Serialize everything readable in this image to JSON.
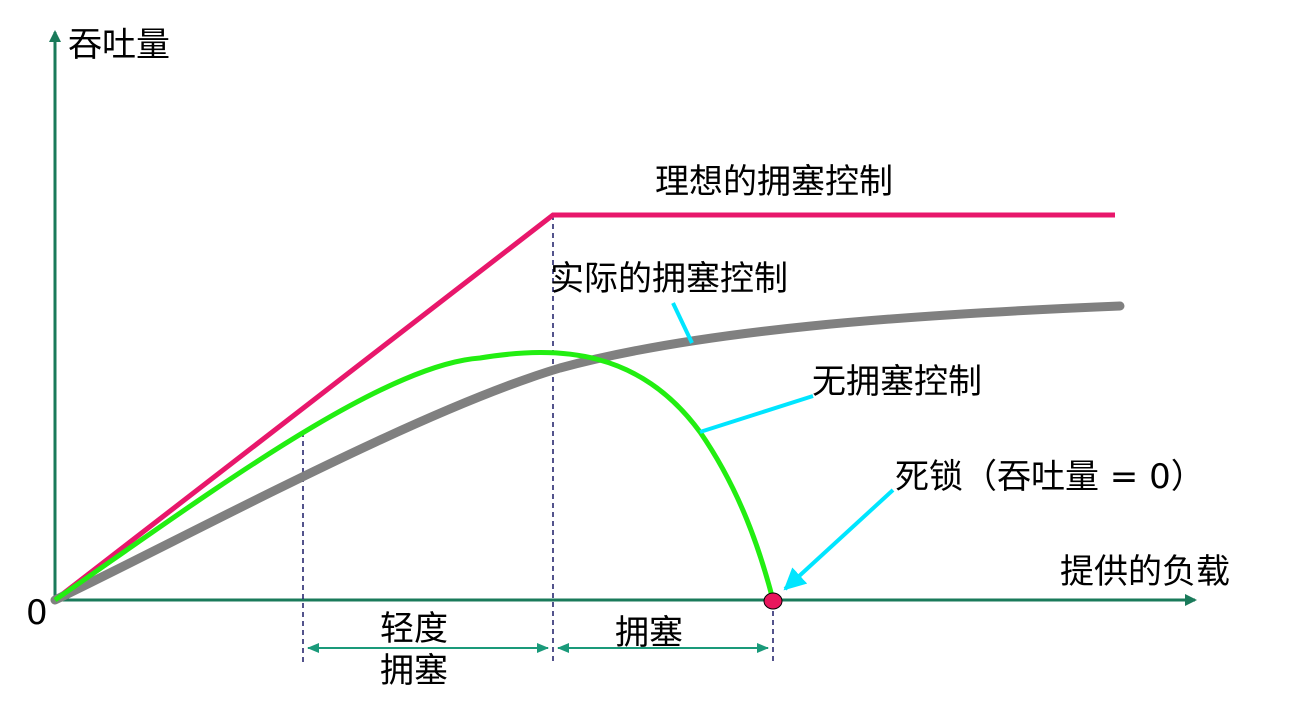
{
  "axes": {
    "y_label": "吞吐量",
    "x_label": "提供的负载",
    "origin_label": "0"
  },
  "curves": {
    "ideal": {
      "label": "理想的拥塞控制",
      "color": "#e8176b"
    },
    "actual": {
      "label": "实际的拥塞控制",
      "color": "#808080"
    },
    "none": {
      "label": "无拥塞控制",
      "color": "#22ee11"
    }
  },
  "deadlock": {
    "label": "死锁（吞吐量 = 0）",
    "color": "#e8175d"
  },
  "regions": {
    "light": {
      "line1": "轻度",
      "line2": "拥塞"
    },
    "congested": {
      "label": "拥塞"
    }
  },
  "colors": {
    "axis": "#1a7a5a",
    "pointer": "#00e5ff",
    "guide": "#1a1a66",
    "span_arrow": "#1a9a7a"
  }
}
